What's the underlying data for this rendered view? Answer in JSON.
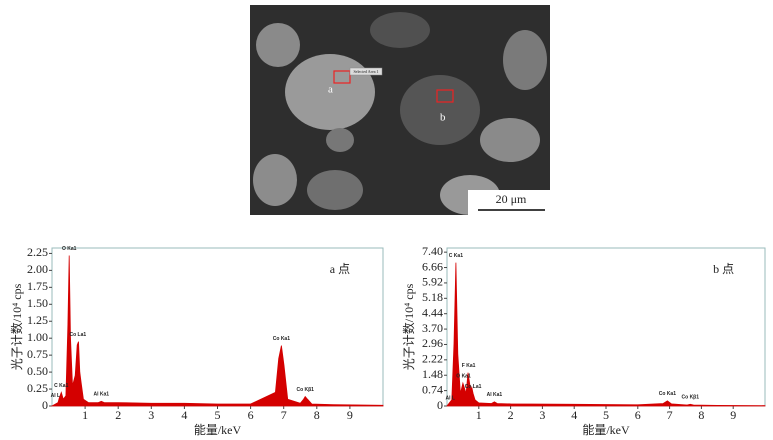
{
  "image": {
    "scale_bar": "20 μm",
    "point_labels": [
      "a",
      "b"
    ],
    "area_label": "Selected Area 1"
  },
  "chart_data": [
    {
      "type": "area",
      "panel_label": "a 点",
      "y_label": "光子计数/10⁴ cps",
      "x_label": "能量/keV",
      "color": "#d40000",
      "x": [
        0,
        0.18,
        0.22,
        0.28,
        0.34,
        0.42,
        0.48,
        0.52,
        0.56,
        0.62,
        0.7,
        0.76,
        0.8,
        0.84,
        0.88,
        0.95,
        1.1,
        1.4,
        1.49,
        1.58,
        2,
        3,
        4,
        5,
        6,
        6.75,
        6.85,
        6.93,
        7.01,
        7.12,
        7.5,
        7.6,
        7.65,
        7.72,
        7.85,
        8.5,
        10
      ],
      "values": [
        0,
        0.05,
        0.12,
        0.2,
        0.1,
        0.15,
        1.2,
        2.22,
        1.0,
        0.3,
        0.45,
        0.9,
        0.95,
        0.5,
        0.35,
        0.1,
        0.05,
        0.05,
        0.07,
        0.05,
        0.05,
        0.04,
        0.04,
        0.03,
        0.03,
        0.2,
        0.7,
        0.89,
        0.6,
        0.1,
        0.04,
        0.1,
        0.14,
        0.1,
        0.03,
        0.02,
        0.01
      ],
      "xlim": [
        0,
        10
      ],
      "xticks": [
        1,
        2,
        3,
        4,
        5,
        6,
        7,
        8,
        9
      ],
      "ylim": [
        0,
        2.33
      ],
      "yticks": [
        0,
        0.25,
        {
          "value": 0.5,
          "label": "0.50"
        },
        0.75,
        {
          "value": 1,
          "label": "1.00"
        },
        1.25,
        {
          "value": 1.5,
          "label": "1.50"
        },
        1.75,
        {
          "value": 2,
          "label": "2.00"
        },
        2.25
      ],
      "annotations": [
        {
          "text": "O Ka1",
          "x": 0.52,
          "y": 2.22
        },
        {
          "text": "Co La1",
          "x": 0.78,
          "y": 0.95
        },
        {
          "text": "C Ka1",
          "x": 0.28,
          "y": 0.2
        },
        {
          "text": "Al L",
          "x": 0.1,
          "y": 0.05
        },
        {
          "text": "Al Ka1",
          "x": 1.49,
          "y": 0.07
        },
        {
          "text": "Co Ka1",
          "x": 6.93,
          "y": 0.89
        },
        {
          "text": "Co Kβ1",
          "x": 7.65,
          "y": 0.14
        }
      ]
    },
    {
      "type": "area",
      "panel_label": "b 点",
      "y_label": "光子计数/10⁴ cps",
      "x_label": "能量/keV",
      "color": "#d40000",
      "x": [
        0,
        0.15,
        0.22,
        0.28,
        0.34,
        0.42,
        0.5,
        0.54,
        0.6,
        0.66,
        0.7,
        0.74,
        0.78,
        0.82,
        0.88,
        1.0,
        1.4,
        1.49,
        1.58,
        2,
        4,
        6,
        6.8,
        6.93,
        7.06,
        7.55,
        7.65,
        7.75,
        8.5,
        10
      ],
      "values": [
        0,
        0.3,
        3.0,
        6.9,
        2.5,
        0.6,
        1.1,
        0.9,
        0.6,
        1.6,
        1.2,
        0.8,
        0.9,
        0.6,
        0.3,
        0.15,
        0.12,
        0.2,
        0.12,
        0.1,
        0.08,
        0.06,
        0.12,
        0.25,
        0.1,
        0.05,
        0.08,
        0.05,
        0.03,
        0.02
      ],
      "xlim": [
        0,
        10
      ],
      "xticks": [
        1,
        2,
        3,
        4,
        5,
        6,
        7,
        8,
        9
      ],
      "ylim": [
        0,
        7.6
      ],
      "yticks": [
        0,
        0.74,
        1.48,
        2.22,
        2.96,
        {
          "value": 3.7,
          "label": "3.70"
        },
        4.44,
        5.18,
        5.92,
        6.66,
        {
          "value": 7.4,
          "label": "7.40"
        }
      ],
      "annotations": [
        {
          "text": "C Ka1",
          "x": 0.28,
          "y": 6.9
        },
        {
          "text": "F Ka1",
          "x": 0.68,
          "y": 1.6
        },
        {
          "text": "O Ka1",
          "x": 0.52,
          "y": 1.1
        },
        {
          "text": "Co La1",
          "x": 0.82,
          "y": 0.6
        },
        {
          "text": "Al L",
          "x": 0.1,
          "y": 0.05
        },
        {
          "text": "Al Ka1",
          "x": 1.49,
          "y": 0.2
        },
        {
          "text": "Co Ka1",
          "x": 6.93,
          "y": 0.25
        },
        {
          "text": "Co Kβ1",
          "x": 7.65,
          "y": 0.08
        }
      ]
    }
  ]
}
